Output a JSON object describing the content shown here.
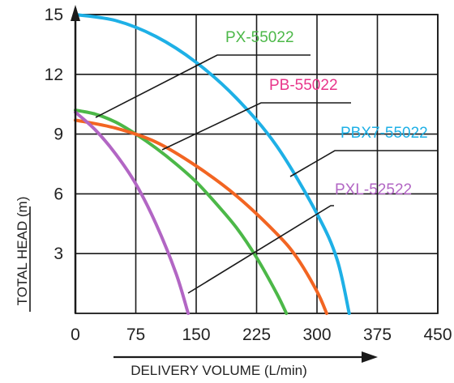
{
  "chart_data": {
    "type": "line",
    "title": "",
    "xlabel": "DELIVERY VOLUME (L/min)",
    "ylabel": "TOTAL HEAD (m)",
    "xlim": [
      0,
      450
    ],
    "ylim": [
      0,
      15
    ],
    "x_ticks": [
      "0",
      "75",
      "150",
      "225",
      "300",
      "375",
      "450"
    ],
    "y_ticks": [
      "3",
      "6",
      "9",
      "12",
      "15"
    ],
    "grid": true,
    "series": [
      {
        "name": "PX-55022",
        "color": "#4cb848",
        "x": [
          0,
          25,
          50,
          75,
          100,
          125,
          150,
          175,
          200,
          225,
          250,
          262
        ],
        "y": [
          10.2,
          10.0,
          9.6,
          9.0,
          8.3,
          7.5,
          6.6,
          5.5,
          4.3,
          2.8,
          1.0,
          0
        ]
      },
      {
        "name": "PB-55022",
        "color": "#f26522",
        "x": [
          0,
          50,
          100,
          150,
          200,
          250,
          275,
          300,
          312
        ],
        "y": [
          9.7,
          9.3,
          8.6,
          7.4,
          5.9,
          4.0,
          2.8,
          1.1,
          0
        ]
      },
      {
        "name": "PBX7-55022",
        "color": "#1eb0e6",
        "x": [
          0,
          50,
          100,
          150,
          200,
          250,
          300,
          325,
          340
        ],
        "y": [
          15.0,
          14.7,
          13.9,
          12.6,
          10.8,
          8.4,
          5.0,
          2.7,
          0
        ]
      },
      {
        "name": "PXL-52522",
        "color": "#b266c4",
        "x": [
          0,
          25,
          50,
          75,
          100,
          125,
          140
        ],
        "y": [
          10.1,
          9.2,
          8.0,
          6.5,
          4.5,
          2.0,
          0
        ]
      }
    ]
  }
}
